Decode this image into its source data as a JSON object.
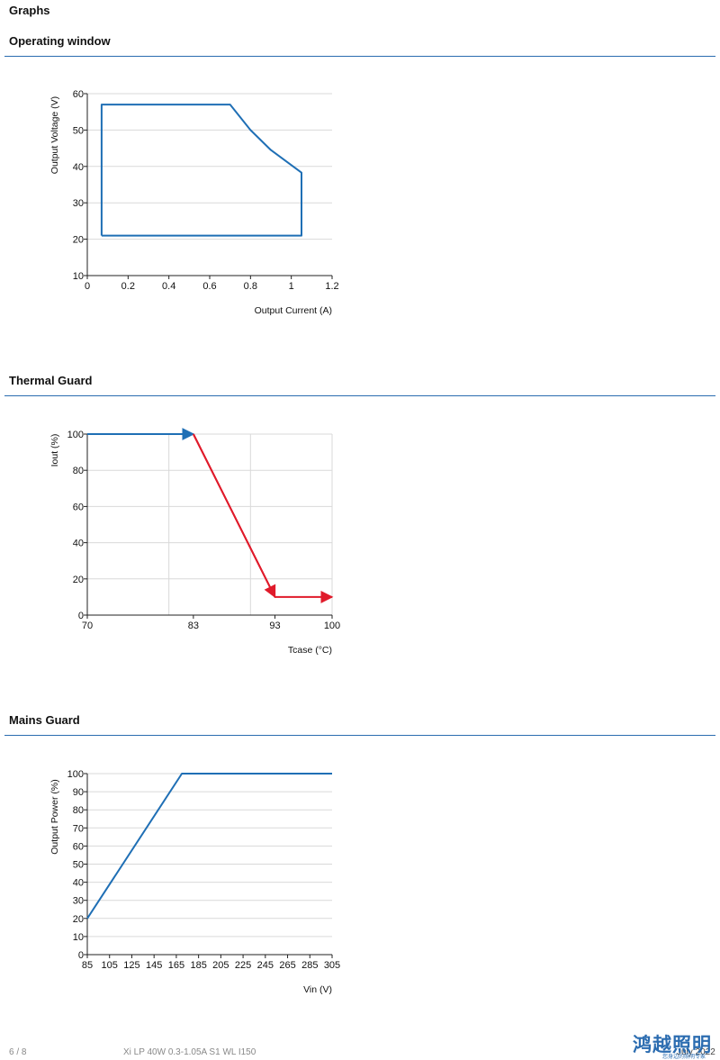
{
  "page": {
    "heading": "Graphs",
    "footer_page": "6 / 8",
    "footer_product": "Xi LP 40W 0.3-1.05A S1 WL I150",
    "footer_date": "July 2022",
    "logo_text": "鸿越照明",
    "logo_subtext": "您身边的照明专家"
  },
  "colors": {
    "blue": "#1f6fb5",
    "red": "#e01b2b",
    "grid": "#d9d9d9",
    "rule": "#2b6cb0"
  },
  "sections": {
    "operating": {
      "title": "Operating window"
    },
    "thermal": {
      "title": "Thermal Guard"
    },
    "mains": {
      "title": "Mains Guard"
    }
  },
  "chart_data": [
    {
      "id": "operating",
      "type": "line",
      "title": "",
      "xlabel": "Output Current (A)",
      "ylabel": "Output Voltage (V)",
      "xlim": [
        0,
        1.2
      ],
      "ylim": [
        10,
        60
      ],
      "xticks": [
        0,
        0.2,
        0.4,
        0.6,
        0.8,
        1,
        1.2
      ],
      "yticks": [
        10,
        20,
        30,
        40,
        50,
        60
      ],
      "grid": "horizontal",
      "series": [
        {
          "color": "#1f6fb5",
          "points": [
            [
              0.07,
              21
            ],
            [
              0.07,
              57
            ],
            [
              0.7,
              57
            ],
            [
              0.8,
              50
            ],
            [
              0.9,
              44.5
            ],
            [
              1.05,
              38.3
            ],
            [
              1.05,
              21
            ],
            [
              0.07,
              21
            ]
          ]
        }
      ]
    },
    {
      "id": "thermal",
      "type": "line",
      "title": "",
      "xlabel": "Tcase (°C)",
      "ylabel": "Iout (%)",
      "xlim": [
        70,
        100
      ],
      "ylim": [
        0,
        100
      ],
      "xticks": [
        70,
        83,
        93,
        100
      ],
      "yticks": [
        0,
        20,
        40,
        60,
        80,
        100
      ],
      "vgrid": [
        80,
        90
      ],
      "grid": "both",
      "series": [
        {
          "color": "#1f6fb5",
          "points": [
            [
              70,
              100
            ],
            [
              83,
              100
            ]
          ]
        },
        {
          "color": "#e01b2b",
          "points": [
            [
              83,
              100
            ],
            [
              93,
              10
            ],
            [
              100,
              10
            ]
          ]
        }
      ]
    },
    {
      "id": "mains",
      "type": "line",
      "title": "",
      "xlabel": "Vin (V)",
      "ylabel": "Output Power (%)",
      "xlim": [
        85,
        305
      ],
      "ylim": [
        0,
        100
      ],
      "xticks": [
        85,
        105,
        125,
        145,
        165,
        185,
        205,
        225,
        245,
        265,
        285,
        305
      ],
      "yticks": [
        0,
        10,
        20,
        30,
        40,
        50,
        60,
        70,
        80,
        90,
        100
      ],
      "grid": "horizontal",
      "series": [
        {
          "color": "#1f6fb5",
          "points": [
            [
              85,
              20
            ],
            [
              170,
              100
            ],
            [
              305,
              100
            ]
          ]
        }
      ]
    }
  ]
}
